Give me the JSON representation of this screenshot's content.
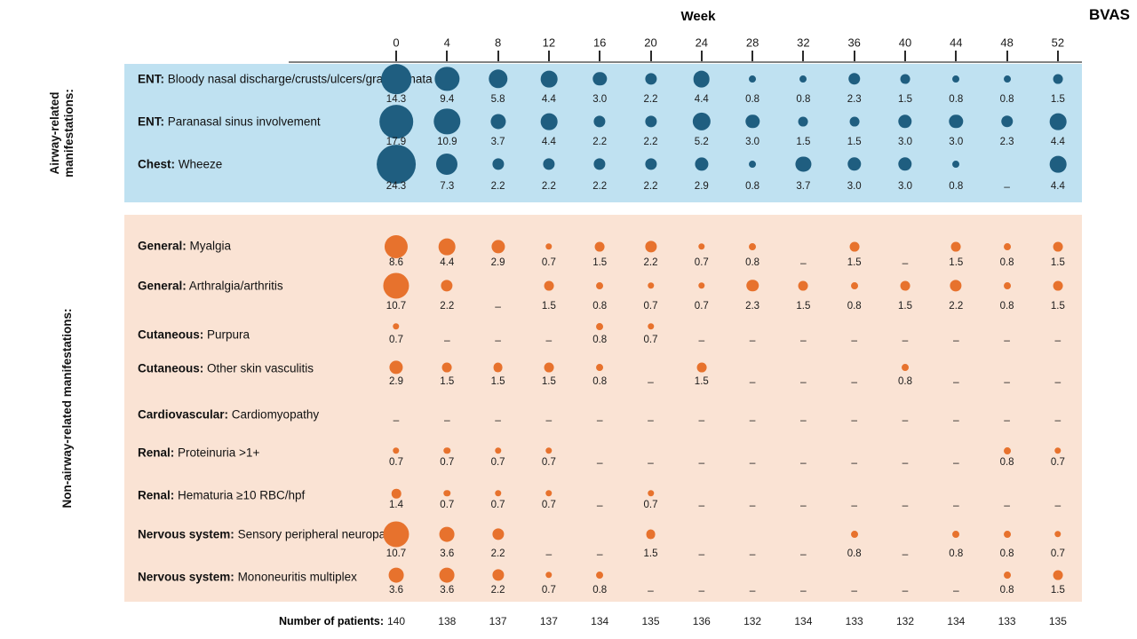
{
  "chart_data": {
    "type": "bubble",
    "title": "BVAS",
    "x_axis_label": "Week",
    "weeks": [
      0,
      4,
      8,
      12,
      16,
      20,
      24,
      28,
      32,
      36,
      40,
      44,
      48,
      52
    ],
    "missing_marker": "–",
    "legend_position": "none",
    "grid": false,
    "sections": [
      {
        "name": "Airway-related manifestations:",
        "bg_color": "#BFE1F1",
        "bubble_color": "#1F5E80",
        "rows": [
          {
            "category": "ENT",
            "label": "Bloody nasal discharge/crusts/ulcers/granulomata",
            "values": [
              14.3,
              9.4,
              5.8,
              4.4,
              3.0,
              2.2,
              4.4,
              0.8,
              0.8,
              2.3,
              1.5,
              0.8,
              0.8,
              1.5
            ]
          },
          {
            "category": "ENT",
            "label": "Paranasal sinus involvement",
            "values": [
              17.9,
              10.9,
              3.7,
              4.4,
              2.2,
              2.2,
              5.2,
              3.0,
              1.5,
              1.5,
              3.0,
              3.0,
              2.3,
              4.4
            ]
          },
          {
            "category": "Chest",
            "label": "Wheeze",
            "values": [
              24.3,
              7.3,
              2.2,
              2.2,
              2.2,
              2.2,
              2.9,
              0.8,
              3.7,
              3.0,
              3.0,
              0.8,
              null,
              4.4
            ]
          }
        ]
      },
      {
        "name": "Non-airway-related  manifestations:",
        "bg_color": "#FAE3D4",
        "bubble_color": "#E7722D",
        "rows": [
          {
            "category": "General",
            "label": "Myalgia",
            "values": [
              8.6,
              4.4,
              2.9,
              0.7,
              1.5,
              2.2,
              0.7,
              0.8,
              null,
              1.5,
              null,
              1.5,
              0.8,
              1.5
            ]
          },
          {
            "category": "General",
            "label": "Arthralgia/arthritis",
            "values": [
              10.7,
              2.2,
              null,
              1.5,
              0.8,
              0.7,
              0.7,
              2.3,
              1.5,
              0.8,
              1.5,
              2.2,
              0.8,
              1.5
            ]
          },
          {
            "category": "Cutaneous",
            "label": "Purpura",
            "values": [
              0.7,
              null,
              null,
              null,
              0.8,
              0.7,
              null,
              null,
              null,
              null,
              null,
              null,
              null,
              null
            ]
          },
          {
            "category": "Cutaneous",
            "label": "Other skin vasculitis",
            "values": [
              2.9,
              1.5,
              1.5,
              1.5,
              0.8,
              null,
              1.5,
              null,
              null,
              null,
              0.8,
              null,
              null,
              null
            ]
          },
          {
            "category": "Cardiovascular",
            "label": "Cardiomyopathy",
            "values": [
              null,
              null,
              null,
              null,
              null,
              null,
              null,
              null,
              null,
              null,
              null,
              null,
              null,
              null
            ]
          },
          {
            "category": "Renal",
            "label": "Proteinuria >1+",
            "values": [
              0.7,
              0.7,
              0.7,
              0.7,
              null,
              null,
              null,
              null,
              null,
              null,
              null,
              null,
              0.8,
              0.7
            ]
          },
          {
            "category": "Renal",
            "label": "Hematuria ≥10 RBC/hpf",
            "values": [
              1.4,
              0.7,
              0.7,
              0.7,
              null,
              0.7,
              null,
              null,
              null,
              null,
              null,
              null,
              null,
              null
            ]
          },
          {
            "category": "Nervous system",
            "label": "Sensory peripheral neuropathy",
            "values": [
              10.7,
              3.6,
              2.2,
              null,
              null,
              1.5,
              null,
              null,
              null,
              0.8,
              null,
              0.8,
              0.8,
              0.7
            ]
          },
          {
            "category": "Nervous system",
            "label": "Mononeuritis multiplex",
            "values": [
              3.6,
              3.6,
              2.2,
              0.7,
              0.8,
              null,
              null,
              null,
              null,
              null,
              null,
              null,
              0.8,
              1.5
            ]
          }
        ]
      }
    ],
    "footer": {
      "label": "Number of patients:",
      "values": [
        140,
        138,
        137,
        137,
        134,
        135,
        136,
        132,
        134,
        133,
        132,
        134,
        133,
        135
      ]
    },
    "colors": {
      "axis_line": "#828282",
      "airway_bubble": "#1F5E80",
      "airway_bg": "#BFE1F1",
      "non_airway_bubble": "#E7722D",
      "non_airway_bg": "#FAE3D4"
    }
  }
}
